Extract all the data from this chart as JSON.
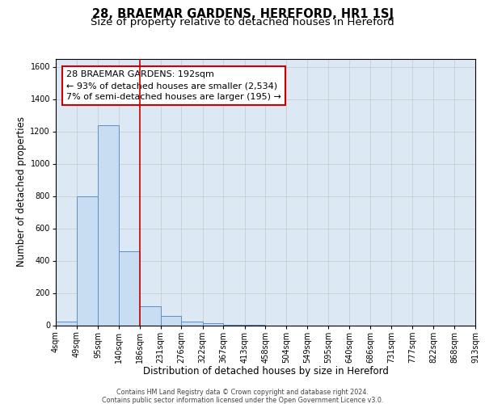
{
  "title": "28, BRAEMAR GARDENS, HEREFORD, HR1 1SJ",
  "subtitle": "Size of property relative to detached houses in Hereford",
  "xlabel": "Distribution of detached houses by size in Hereford",
  "ylabel": "Number of detached properties",
  "bin_edges": [
    4,
    49,
    95,
    140,
    186,
    231,
    276,
    322,
    367,
    413,
    458,
    504,
    549,
    595,
    640,
    686,
    731,
    777,
    822,
    868,
    913
  ],
  "bar_heights": [
    25,
    800,
    1240,
    460,
    120,
    60,
    25,
    15,
    5,
    5,
    0,
    0,
    0,
    0,
    0,
    0,
    0,
    0,
    0,
    0
  ],
  "bar_color": "#c8ddf2",
  "bar_edgecolor": "#5b8fc9",
  "bar_linewidth": 0.7,
  "vline_x": 186,
  "vline_color": "#cc0000",
  "vline_linewidth": 1.2,
  "ylim": [
    0,
    1650
  ],
  "yticks": [
    0,
    200,
    400,
    600,
    800,
    1000,
    1200,
    1400,
    1600
  ],
  "annotation_text_line1": "28 BRAEMAR GARDENS: 192sqm",
  "annotation_text_line2": "← 93% of detached houses are smaller (2,534)",
  "annotation_text_line3": "7% of semi-detached houses are larger (195) →",
  "annotation_box_facecolor": "#ffffff",
  "annotation_box_edgecolor": "#cc0000",
  "grid_color": "#c8c8c8",
  "bg_color": "#dce9f5",
  "footer_line1": "Contains HM Land Registry data © Crown copyright and database right 2024.",
  "footer_line2": "Contains public sector information licensed under the Open Government Licence v3.0.",
  "title_fontsize": 10.5,
  "subtitle_fontsize": 9.5,
  "axis_label_fontsize": 8.5,
  "tick_fontsize": 7,
  "annotation_fontsize": 8,
  "footer_fontsize": 5.8
}
